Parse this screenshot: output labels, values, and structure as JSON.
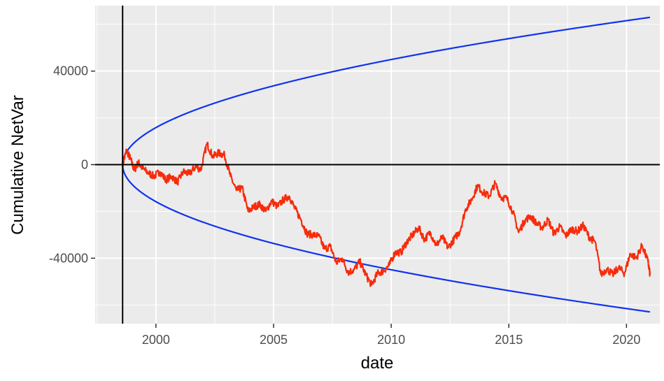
{
  "chart_data": {
    "type": "line",
    "xlabel": "date",
    "ylabel": "Cumulative NetVar",
    "xlim": [
      "1997-06-01",
      "2021-06-01"
    ],
    "ylim": [
      -68000,
      68000
    ],
    "x_ticks": [
      {
        "value": "2000-01-01",
        "label": "2000"
      },
      {
        "value": "2005-01-01",
        "label": "2005"
      },
      {
        "value": "2010-01-01",
        "label": "2010"
      },
      {
        "value": "2015-01-01",
        "label": "2015"
      },
      {
        "value": "2020-01-01",
        "label": "2020"
      }
    ],
    "y_ticks": [
      {
        "value": 40000,
        "label": "40000"
      },
      {
        "value": 0,
        "label": "0"
      },
      {
        "value": -40000,
        "label": "-40000"
      }
    ],
    "reference_lines": {
      "vertical_date": "1998-08-01",
      "horizontal_y": 0
    },
    "colors": {
      "panel": "#ebebeb",
      "grid": "#ffffff",
      "cumulative": "#f72b0b",
      "bounds": "#1133ee",
      "reference": "#000000"
    },
    "bounds": {
      "start": "1998-08-01",
      "coefficient": 13300,
      "x": [
        "1998-08-01",
        "1998-09-01",
        "1998-11-01",
        "1999-02-01",
        "1999-08-01",
        "2000-06-01",
        "2001-06-01",
        "2003-01-01",
        "2005-01-01",
        "2007-01-01",
        "2010-01-01",
        "2013-01-01",
        "2016-01-01",
        "2019-01-01",
        "2021-01-01"
      ],
      "upper": [
        0,
        3840,
        7400,
        10890,
        15360,
        20030,
        24400,
        29240,
        34440,
        39120,
        44870,
        50060,
        54720,
        59020,
        61660
      ],
      "lower": [
        0,
        -3840,
        -7400,
        -10890,
        -15360,
        -20030,
        -24400,
        -29240,
        -34440,
        -39120,
        -44870,
        -50060,
        -54720,
        -59020,
        -61660
      ]
    },
    "series": [
      {
        "x": [
          "1998-08-01",
          "1998-10-01",
          "1998-12-01",
          "1999-02-01",
          "1999-04-01",
          "1999-06-01",
          "1999-09-01",
          "1999-12-01",
          "2000-03-01",
          "2000-06-01",
          "2000-09-01",
          "2000-12-01",
          "2001-03-01",
          "2001-06-01",
          "2001-09-01",
          "2001-12-01",
          "2002-03-01",
          "2002-06-01",
          "2002-09-01",
          "2002-12-01",
          "2003-03-01",
          "2003-06-01",
          "2003-09-01",
          "2003-12-01",
          "2004-03-01",
          "2004-06-01",
          "2004-09-01",
          "2004-12-01",
          "2005-03-01",
          "2005-06-01",
          "2005-09-01",
          "2005-12-01",
          "2006-03-01",
          "2006-06-01",
          "2006-09-01",
          "2006-12-01",
          "2007-03-01",
          "2007-06-01",
          "2007-09-01",
          "2007-12-01",
          "2008-03-01",
          "2008-06-01",
          "2008-09-01",
          "2008-12-01",
          "2009-03-01",
          "2009-06-01",
          "2009-09-01",
          "2009-12-01",
          "2010-03-01",
          "2010-06-01",
          "2010-09-01",
          "2010-12-01",
          "2011-03-01",
          "2011-06-01",
          "2011-09-01",
          "2011-12-01",
          "2012-03-01",
          "2012-06-01",
          "2012-09-01",
          "2012-12-01",
          "2013-03-01",
          "2013-06-01",
          "2013-09-01",
          "2013-12-01",
          "2014-03-01",
          "2014-06-01",
          "2014-09-01",
          "2014-12-01",
          "2015-03-01",
          "2015-06-01",
          "2015-09-01",
          "2015-12-01",
          "2016-03-01",
          "2016-06-01",
          "2016-09-01",
          "2016-12-01",
          "2017-03-01",
          "2017-06-01",
          "2017-09-01",
          "2017-12-01",
          "2018-03-01",
          "2018-06-01",
          "2018-09-01",
          "2018-12-01",
          "2019-03-01",
          "2019-06-01",
          "2019-09-01",
          "2019-12-01",
          "2020-03-01",
          "2020-06-01",
          "2020-09-01",
          "2020-12-01",
          "2021-01-01"
        ],
        "values": [
          0,
          6000,
          2500,
          -2500,
          1000,
          -1500,
          -3500,
          -5000,
          -3000,
          -6500,
          -5000,
          -7500,
          -3000,
          -4000,
          -1000,
          -2000,
          9000,
          3500,
          5000,
          4000,
          -5000,
          -11000,
          -10000,
          -20000,
          -18000,
          -17000,
          -20000,
          -15500,
          -18000,
          -15000,
          -13500,
          -19000,
          -23500,
          -29500,
          -30000,
          -30500,
          -36000,
          -35000,
          -42000,
          -40000,
          -46000,
          -45000,
          -41500,
          -47000,
          -51500,
          -46500,
          -45500,
          -43000,
          -37500,
          -37500,
          -33000,
          -30000,
          -27000,
          -32000,
          -29000,
          -34500,
          -31000,
          -35500,
          -32000,
          -28500,
          -19000,
          -15000,
          -9000,
          -12000,
          -13500,
          -8000,
          -14000,
          -14500,
          -20000,
          -29000,
          -24000,
          -22000,
          -25000,
          -27000,
          -23500,
          -29500,
          -26500,
          -30500,
          -27500,
          -28500,
          -26000,
          -31000,
          -33000,
          -47000,
          -44500,
          -47000,
          -44000,
          -46500,
          -38000,
          -40000,
          -34500,
          -41500,
          -47000
        ]
      }
    ]
  }
}
